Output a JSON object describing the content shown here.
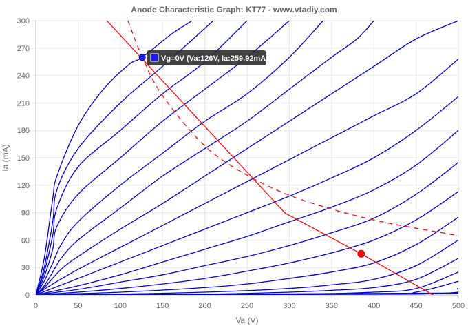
{
  "chart_data": {
    "type": "line",
    "title": "Anode Characteristic Graph: KT77 - www.vtadiy.com",
    "xlabel": "Va (V)",
    "ylabel": "Ia (mA)",
    "xlim": [
      0,
      500
    ],
    "ylim": [
      0,
      300
    ],
    "xticks": [
      0,
      50,
      100,
      150,
      200,
      250,
      300,
      350,
      400,
      450,
      500
    ],
    "yticks": [
      0,
      30,
      60,
      90,
      120,
      150,
      180,
      210,
      240,
      270,
      300
    ],
    "grid": true,
    "colors": {
      "curves": "#0000cc",
      "load": "#ee1111",
      "grid": "#e6e6e6",
      "point_active": "#1a1aff"
    },
    "curves": [
      {
        "points": [
          [
            0,
            0
          ],
          [
            10,
            40
          ],
          [
            20,
            105
          ],
          [
            25,
            130
          ],
          [
            50,
            185
          ],
          [
            80,
            225
          ],
          [
            110,
            252
          ],
          [
            126,
            260
          ],
          [
            160,
            285
          ],
          [
            185,
            300
          ]
        ]
      },
      {
        "points": [
          [
            0,
            0
          ],
          [
            10,
            30
          ],
          [
            20,
            80
          ],
          [
            25,
            115
          ],
          [
            50,
            160
          ],
          [
            100,
            210
          ],
          [
            150,
            250
          ],
          [
            210,
            300
          ]
        ]
      },
      {
        "points": [
          [
            0,
            0
          ],
          [
            10,
            25
          ],
          [
            20,
            65
          ],
          [
            25,
            95
          ],
          [
            50,
            140
          ],
          [
            100,
            180
          ],
          [
            150,
            220
          ],
          [
            200,
            255
          ],
          [
            250,
            300
          ]
        ]
      },
      {
        "points": [
          [
            0,
            0
          ],
          [
            10,
            20
          ],
          [
            20,
            50
          ],
          [
            25,
            75
          ],
          [
            50,
            110
          ],
          [
            100,
            150
          ],
          [
            150,
            190
          ],
          [
            200,
            225
          ],
          [
            250,
            260
          ],
          [
            300,
            300
          ]
        ]
      },
      {
        "points": [
          [
            0,
            0
          ],
          [
            10,
            15
          ],
          [
            20,
            35
          ],
          [
            30,
            55
          ],
          [
            50,
            80
          ],
          [
            100,
            120
          ],
          [
            150,
            155
          ],
          [
            200,
            190
          ],
          [
            250,
            220
          ],
          [
            300,
            260
          ],
          [
            340,
            300
          ]
        ]
      },
      {
        "points": [
          [
            0,
            0
          ],
          [
            10,
            10
          ],
          [
            20,
            25
          ],
          [
            30,
            40
          ],
          [
            50,
            60
          ],
          [
            100,
            95
          ],
          [
            150,
            130
          ],
          [
            200,
            160
          ],
          [
            250,
            190
          ],
          [
            300,
            225
          ],
          [
            350,
            260
          ],
          [
            380,
            280
          ],
          [
            400,
            300
          ]
        ]
      },
      {
        "points": [
          [
            0,
            0
          ],
          [
            10,
            8
          ],
          [
            30,
            28
          ],
          [
            50,
            42
          ],
          [
            100,
            72
          ],
          [
            150,
            100
          ],
          [
            200,
            130
          ],
          [
            250,
            160
          ],
          [
            300,
            190
          ],
          [
            350,
            220
          ],
          [
            400,
            250
          ],
          [
            450,
            280
          ],
          [
            500,
            300
          ]
        ]
      },
      {
        "points": [
          [
            0,
            0
          ],
          [
            20,
            12
          ],
          [
            50,
            28
          ],
          [
            100,
            52
          ],
          [
            150,
            76
          ],
          [
            200,
            100
          ],
          [
            250,
            124
          ],
          [
            300,
            148
          ],
          [
            350,
            172
          ],
          [
            400,
            196
          ],
          [
            450,
            220
          ],
          [
            500,
            258
          ]
        ]
      },
      {
        "points": [
          [
            0,
            0
          ],
          [
            50,
            18
          ],
          [
            100,
            36
          ],
          [
            150,
            54
          ],
          [
            200,
            72
          ],
          [
            250,
            90
          ],
          [
            300,
            108
          ],
          [
            350,
            128
          ],
          [
            400,
            150
          ],
          [
            450,
            180
          ],
          [
            500,
            217
          ]
        ]
      },
      {
        "points": [
          [
            0,
            0
          ],
          [
            50,
            10
          ],
          [
            100,
            22
          ],
          [
            150,
            36
          ],
          [
            200,
            50
          ],
          [
            250,
            64
          ],
          [
            300,
            80
          ],
          [
            350,
            96
          ],
          [
            400,
            115
          ],
          [
            450,
            142
          ],
          [
            500,
            180
          ]
        ]
      },
      {
        "points": [
          [
            0,
            0
          ],
          [
            50,
            6
          ],
          [
            100,
            14
          ],
          [
            150,
            22
          ],
          [
            200,
            32
          ],
          [
            250,
            42
          ],
          [
            300,
            54
          ],
          [
            350,
            68
          ],
          [
            400,
            84
          ],
          [
            450,
            110
          ],
          [
            500,
            145
          ]
        ]
      },
      {
        "points": [
          [
            0,
            0
          ],
          [
            50,
            3
          ],
          [
            100,
            7
          ],
          [
            150,
            12
          ],
          [
            200,
            18
          ],
          [
            250,
            26
          ],
          [
            300,
            35
          ],
          [
            350,
            46
          ],
          [
            400,
            60
          ],
          [
            450,
            82
          ],
          [
            500,
            113
          ]
        ]
      },
      {
        "points": [
          [
            0,
            0
          ],
          [
            100,
            3
          ],
          [
            200,
            8
          ],
          [
            250,
            12
          ],
          [
            300,
            18
          ],
          [
            350,
            25
          ],
          [
            400,
            35
          ],
          [
            450,
            55
          ],
          [
            500,
            85
          ]
        ]
      },
      {
        "points": [
          [
            0,
            0
          ],
          [
            100,
            1
          ],
          [
            200,
            3
          ],
          [
            300,
            7
          ],
          [
            350,
            11
          ],
          [
            400,
            17
          ],
          [
            450,
            32
          ],
          [
            500,
            60
          ]
        ]
      },
      {
        "points": [
          [
            0,
            0
          ],
          [
            200,
            1
          ],
          [
            300,
            3
          ],
          [
            350,
            5
          ],
          [
            400,
            8
          ],
          [
            450,
            17
          ],
          [
            500,
            40
          ]
        ]
      },
      {
        "points": [
          [
            0,
            0
          ],
          [
            300,
            1
          ],
          [
            400,
            3
          ],
          [
            450,
            7
          ],
          [
            500,
            25
          ]
        ]
      },
      {
        "points": [
          [
            0,
            0
          ],
          [
            400,
            1
          ],
          [
            450,
            3
          ],
          [
            500,
            15
          ]
        ]
      },
      {
        "points": [
          [
            0,
            0
          ],
          [
            450,
            1
          ],
          [
            500,
            7
          ]
        ]
      },
      {
        "points": [
          [
            0,
            0
          ],
          [
            500,
            2
          ]
        ]
      }
    ],
    "load_line": [
      [
        84,
        300
      ],
      [
        295,
        89.5
      ],
      [
        385,
        45
      ],
      [
        470,
        0
      ]
    ],
    "dissipation_curve": [
      [
        109,
        300
      ],
      [
        126,
        260
      ],
      [
        150,
        218
      ],
      [
        200,
        163
      ],
      [
        250,
        131
      ],
      [
        300,
        109
      ],
      [
        350,
        94
      ],
      [
        400,
        82
      ],
      [
        450,
        73
      ],
      [
        500,
        65
      ]
    ],
    "operating_point": {
      "x": 385,
      "y": 45
    },
    "active_point": {
      "x": 126,
      "y": 259.92
    },
    "tooltip": {
      "text": "Vg=0V (Va:126V, Ia:259.92mA)"
    }
  }
}
